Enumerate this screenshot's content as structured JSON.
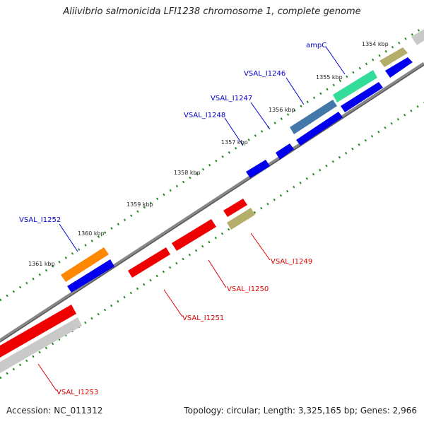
{
  "title": "Aliivibrio salmonicida LFI1238 chromosome 1, complete genome",
  "footer": {
    "accession": "Accession: NC_011312",
    "info": "Topology: circular; Length: 3,325,165 bp; Genes: 2,966"
  },
  "colors": {
    "plus_label": "#0000cc",
    "minus_label": "#dd0000",
    "plus_cds": "#0000ee",
    "minus_cds": "#ee0000",
    "tick": "#228822",
    "backbone": "#777777"
  },
  "tick_labels": [
    "1354 kbp",
    "1355 kbp",
    "1356 kbp",
    "1357 kbp",
    "1358 kbp",
    "1359 kbp",
    "1360 kbp",
    "1361 kbp"
  ],
  "genes_plus": [
    {
      "label": "ampC"
    },
    {
      "label": "VSAL_I1246"
    },
    {
      "label": "VSAL_I1247"
    },
    {
      "label": "VSAL_I1248"
    },
    {
      "label": "VSAL_I1252"
    }
  ],
  "genes_minus": [
    {
      "label": "VSAL_I1249"
    },
    {
      "label": "VSAL_I1250"
    },
    {
      "label": "VSAL_I1251"
    },
    {
      "label": "VSAL_I1253"
    }
  ]
}
